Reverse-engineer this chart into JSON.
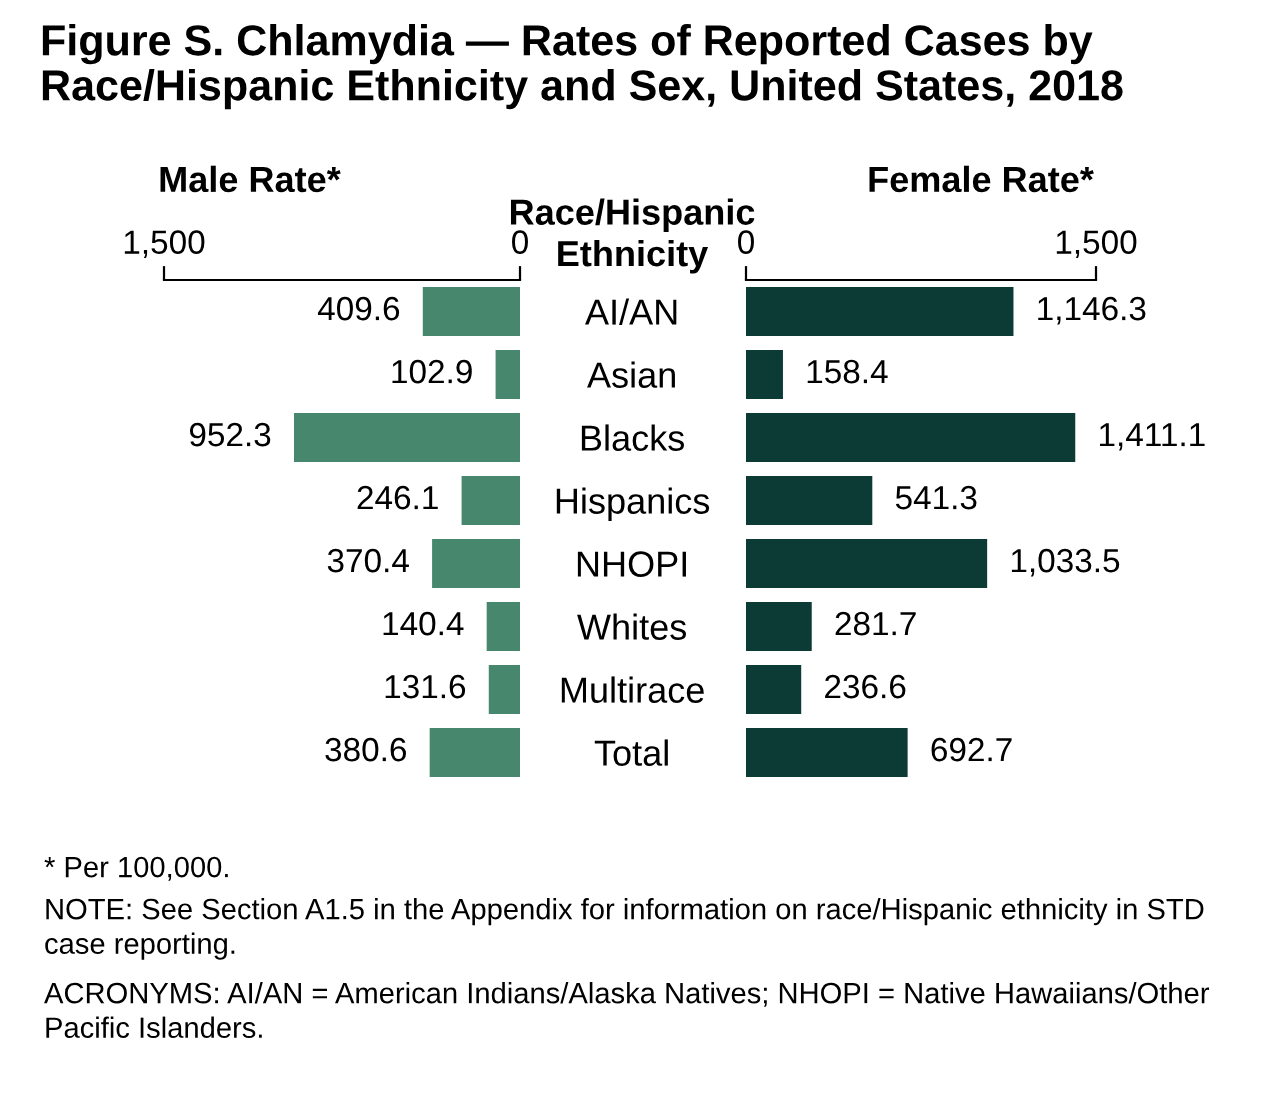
{
  "chart_data": [
    {
      "type": "bar",
      "orientation": "horizontal",
      "title": "Figure S. Chlamydia — Rates of Reported Cases by Race/Hispanic Ethnicity and Sex, United States, 2018",
      "subtitle": "Male Rate*",
      "categories": [
        "AI/AN",
        "Asian",
        "Blacks",
        "Hispanics",
        "NHOPI",
        "Whites",
        "Multirace",
        "Total"
      ],
      "values": [
        409.6,
        102.9,
        952.3,
        246.1,
        370.4,
        140.4,
        131.6,
        380.6
      ],
      "value_labels": [
        "409.6",
        "102.9",
        "952.3",
        "246.1",
        "370.4",
        "140.4",
        "131.6",
        "380.6"
      ],
      "color": "#47876e",
      "xlim": [
        1500,
        0
      ],
      "xticks": [
        {
          "value": 1500,
          "label": "1,500"
        },
        0
      ],
      "tick_labels": "x",
      "grid": false,
      "legend": false,
      "annotations": [
        "* Per 100,000.",
        "NOTE: See Section A1.5 in the Appendix for information on race/Hispanic ethnicity in STD case reporting.",
        "ACRONYMS: AI/AN = American Indians/Alaska Natives; NHOPI = Native Hawaiians/Other Pacific Islanders."
      ]
    },
    {
      "type": "bar",
      "orientation": "horizontal",
      "subtitle": "Female Rate*",
      "ylabel": "Race/Hispanic Ethnicity",
      "categories": [
        "AI/AN",
        "Asian",
        "Blacks",
        "Hispanics",
        "NHOPI",
        "Whites",
        "Multirace",
        "Total"
      ],
      "values": [
        1146.3,
        158.4,
        1411.1,
        541.3,
        1033.5,
        281.7,
        236.6,
        692.7
      ],
      "value_labels": [
        "1,146.3",
        "158.4",
        "1,411.1",
        "541.3",
        "1,033.5",
        "281.7",
        "236.6",
        "692.7"
      ],
      "color": "#0c3a35",
      "xlim": [
        0,
        1500
      ],
      "xticks": [
        0,
        {
          "value": 1500,
          "label": "1,500"
        }
      ],
      "grid": false,
      "legend": false
    }
  ]
}
